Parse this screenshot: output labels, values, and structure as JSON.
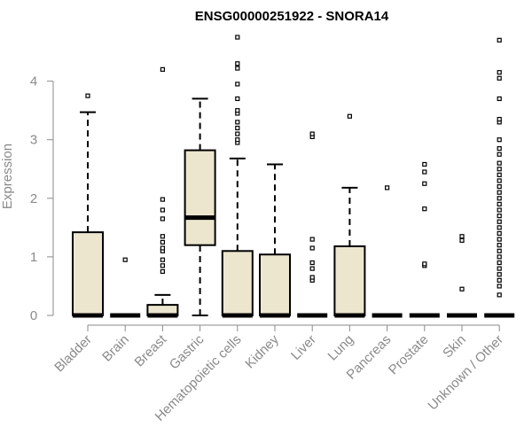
{
  "chart_data": {
    "type": "boxplot",
    "title": "ENSG00000251922 - SNORA14",
    "xlabel": "",
    "ylabel": "Expression",
    "ylim": [
      0,
      4.8
    ],
    "yticks": [
      0,
      1,
      2,
      3,
      4
    ],
    "grid": false,
    "box_fill": "#ede6cf",
    "box_stroke": "#000000",
    "categories": [
      "Bladder",
      "Brain",
      "Breast",
      "Gastric",
      "Hematopoietic cells",
      "Kidney",
      "Liver",
      "Lung",
      "Pancreas",
      "Prostate",
      "Skin",
      "Unknown / Other"
    ],
    "boxes": [
      {
        "q1": 0,
        "median": 0,
        "q3": 1.42,
        "whisker_low": 0,
        "whisker_high": 3.47,
        "outliers": [
          3.75
        ]
      },
      {
        "q1": 0,
        "median": 0,
        "q3": 0,
        "whisker_low": 0,
        "whisker_high": 0,
        "outliers": [
          0.95
        ]
      },
      {
        "q1": 0,
        "median": 0,
        "q3": 0.18,
        "whisker_low": 0,
        "whisker_high": 0.35,
        "outliers": [
          0.75,
          0.85,
          0.95,
          1.1,
          1.15,
          1.25,
          1.35,
          1.65,
          1.8,
          1.98,
          4.2
        ]
      },
      {
        "q1": 1.2,
        "median": 1.67,
        "q3": 2.82,
        "whisker_low": 0,
        "whisker_high": 3.7,
        "outliers": []
      },
      {
        "q1": 0,
        "median": 0,
        "q3": 1.1,
        "whisker_low": 0,
        "whisker_high": 2.68,
        "outliers": [
          2.95,
          3.0,
          3.1,
          3.2,
          3.3,
          3.45,
          3.5,
          3.7,
          3.95,
          4.22,
          4.3,
          4.75
        ]
      },
      {
        "q1": 0,
        "median": 0,
        "q3": 1.04,
        "whisker_low": 0,
        "whisker_high": 2.58,
        "outliers": []
      },
      {
        "q1": 0,
        "median": 0,
        "q3": 0,
        "whisker_low": 0,
        "whisker_high": 0,
        "outliers": [
          0.6,
          0.65,
          0.8,
          0.9,
          1.15,
          1.3,
          3.05,
          3.1
        ]
      },
      {
        "q1": 0,
        "median": 0,
        "q3": 1.18,
        "whisker_low": 0,
        "whisker_high": 2.18,
        "outliers": [
          3.4
        ]
      },
      {
        "q1": 0,
        "median": 0,
        "q3": 0,
        "whisker_low": 0,
        "whisker_high": 0,
        "outliers": [
          2.18
        ]
      },
      {
        "q1": 0,
        "median": 0,
        "q3": 0,
        "whisker_low": 0,
        "whisker_high": 0,
        "outliers": [
          0.85,
          0.88,
          1.82,
          2.25,
          2.45,
          2.58
        ]
      },
      {
        "q1": 0,
        "median": 0,
        "q3": 0,
        "whisker_low": 0,
        "whisker_high": 0,
        "outliers": [
          0.45,
          1.28,
          1.35
        ]
      },
      {
        "q1": 0,
        "median": 0,
        "q3": 0,
        "whisker_low": 0,
        "whisker_high": 0,
        "outliers": [
          0.35,
          0.5,
          0.6,
          0.7,
          0.8,
          0.9,
          1.0,
          1.1,
          1.2,
          1.3,
          1.4,
          1.5,
          1.6,
          1.7,
          1.8,
          1.9,
          2.0,
          2.1,
          2.2,
          2.3,
          2.4,
          2.5,
          2.6,
          2.75,
          2.85,
          3.0,
          3.3,
          3.35,
          3.7,
          4.05,
          4.15,
          4.7
        ]
      }
    ]
  }
}
